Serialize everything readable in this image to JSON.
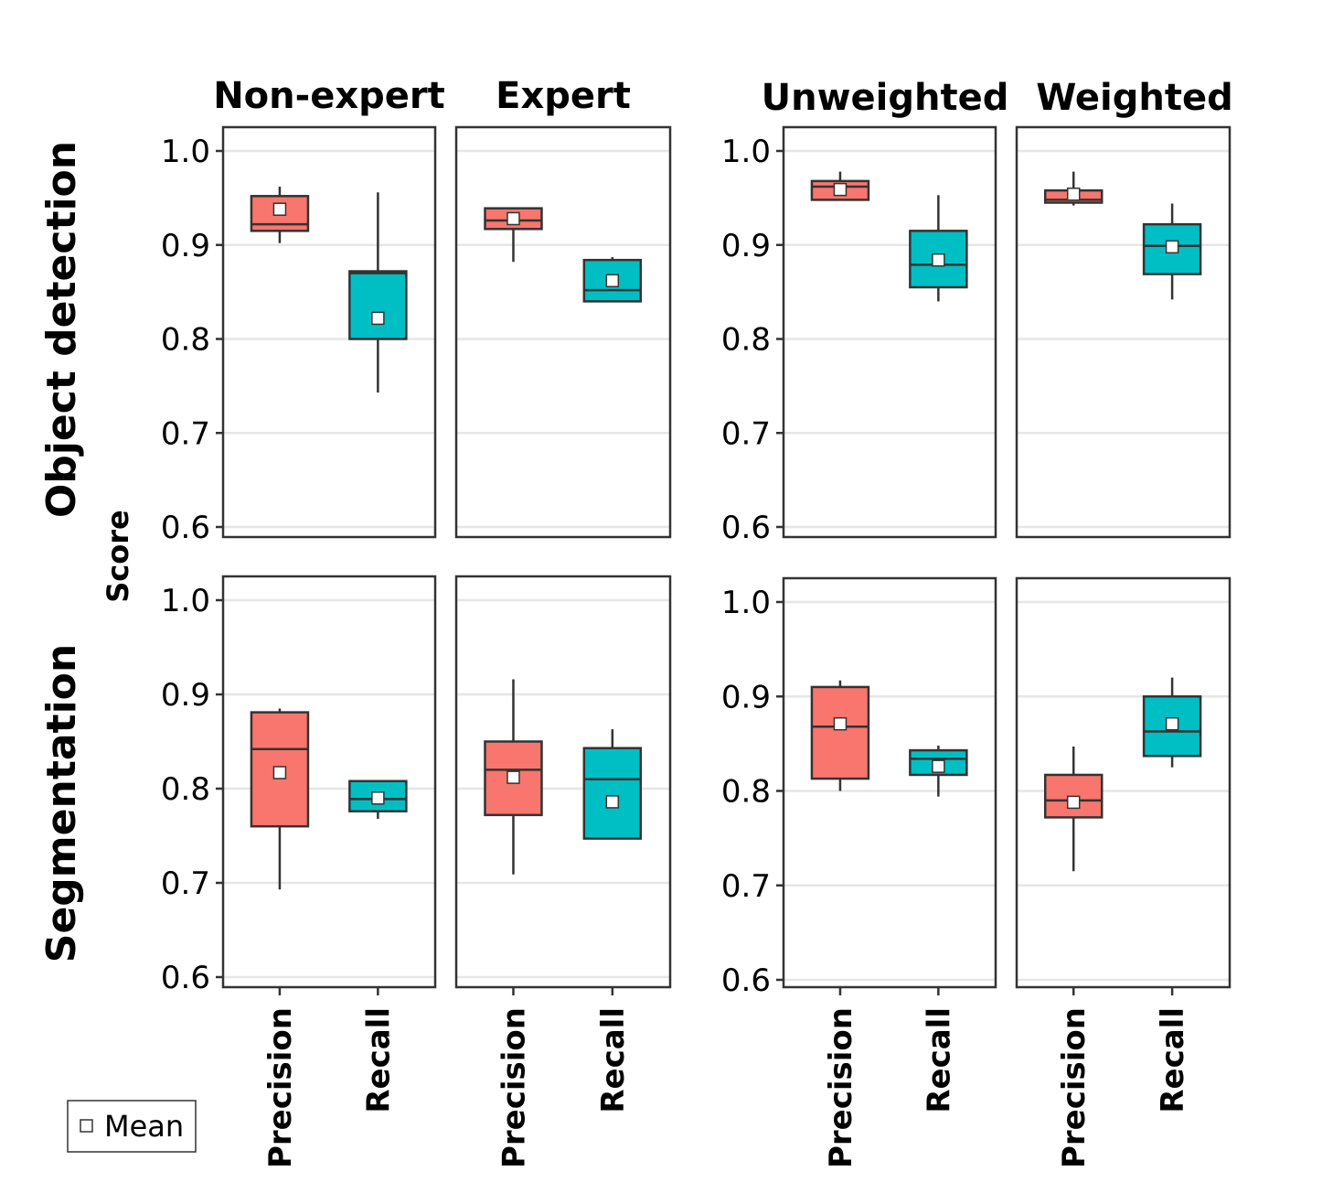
{
  "chart_data": {
    "type": "boxplot",
    "ylabel": "Score",
    "ylim": [
      0.59,
      1.025
    ],
    "yticks": [
      "1.0",
      "0.9",
      "0.8",
      "0.7",
      "0.6"
    ],
    "categories": [
      "Precision",
      "Recall"
    ],
    "colors": {
      "Precision": "#F8766D",
      "Recall": "#00BFC4"
    },
    "legend": {
      "label": "Mean",
      "position": "bottom-left"
    },
    "groups": [
      {
        "columns": [
          "Non-expert",
          "Expert"
        ]
      },
      {
        "columns": [
          "Unweighted",
          "Weighted"
        ]
      }
    ],
    "rows": [
      "Object detection",
      "Segmentation"
    ],
    "panels": [
      {
        "row": "Object detection",
        "column": "Non-expert",
        "boxes": [
          {
            "category": "Precision",
            "min": 0.902,
            "q1": 0.915,
            "median": 0.922,
            "q3": 0.952,
            "max": 0.962,
            "mean": 0.938
          },
          {
            "category": "Recall",
            "min": 0.743,
            "q1": 0.8,
            "median": 0.87,
            "q3": 0.872,
            "max": 0.956,
            "mean": 0.822
          }
        ]
      },
      {
        "row": "Object detection",
        "column": "Expert",
        "boxes": [
          {
            "category": "Precision",
            "min": 0.882,
            "q1": 0.917,
            "median": 0.926,
            "q3": 0.939,
            "max": 0.939,
            "mean": 0.928
          },
          {
            "category": "Recall",
            "min": 0.84,
            "q1": 0.84,
            "median": 0.852,
            "q3": 0.884,
            "max": 0.887,
            "mean": 0.862
          }
        ]
      },
      {
        "row": "Object detection",
        "column": "Unweighted",
        "boxes": [
          {
            "category": "Precision",
            "min": 0.948,
            "q1": 0.948,
            "median": 0.962,
            "q3": 0.968,
            "max": 0.978,
            "mean": 0.959
          },
          {
            "category": "Recall",
            "min": 0.84,
            "q1": 0.855,
            "median": 0.879,
            "q3": 0.915,
            "max": 0.953,
            "mean": 0.884
          }
        ]
      },
      {
        "row": "Object detection",
        "column": "Weighted",
        "boxes": [
          {
            "category": "Precision",
            "min": 0.942,
            "q1": 0.945,
            "median": 0.948,
            "q3": 0.958,
            "max": 0.978,
            "mean": 0.954
          },
          {
            "category": "Recall",
            "min": 0.842,
            "q1": 0.869,
            "median": 0.899,
            "q3": 0.922,
            "max": 0.944,
            "mean": 0.898
          }
        ]
      },
      {
        "row": "Segmentation",
        "column": "Non-expert",
        "boxes": [
          {
            "category": "Precision",
            "min": 0.693,
            "q1": 0.76,
            "median": 0.842,
            "q3": 0.881,
            "max": 0.885,
            "mean": 0.817
          },
          {
            "category": "Recall",
            "min": 0.768,
            "q1": 0.776,
            "median": 0.789,
            "q3": 0.808,
            "max": 0.808,
            "mean": 0.79
          }
        ]
      },
      {
        "row": "Segmentation",
        "column": "Expert",
        "boxes": [
          {
            "category": "Precision",
            "min": 0.709,
            "q1": 0.772,
            "median": 0.82,
            "q3": 0.85,
            "max": 0.916,
            "mean": 0.812
          },
          {
            "category": "Recall",
            "min": 0.747,
            "q1": 0.747,
            "median": 0.81,
            "q3": 0.843,
            "max": 0.863,
            "mean": 0.786
          }
        ]
      },
      {
        "row": "Segmentation",
        "column": "Unweighted",
        "boxes": [
          {
            "category": "Precision",
            "min": 0.8,
            "q1": 0.813,
            "median": 0.868,
            "q3": 0.91,
            "max": 0.917,
            "mean": 0.871
          },
          {
            "category": "Recall",
            "min": 0.794,
            "q1": 0.817,
            "median": 0.834,
            "q3": 0.843,
            "max": 0.848,
            "mean": 0.826
          }
        ]
      },
      {
        "row": "Segmentation",
        "column": "Weighted",
        "boxes": [
          {
            "category": "Precision",
            "min": 0.715,
            "q1": 0.772,
            "median": 0.79,
            "q3": 0.817,
            "max": 0.847,
            "mean": 0.788
          },
          {
            "category": "Recall",
            "min": 0.825,
            "q1": 0.837,
            "median": 0.863,
            "q3": 0.9,
            "max": 0.92,
            "mean": 0.871
          }
        ]
      }
    ]
  }
}
